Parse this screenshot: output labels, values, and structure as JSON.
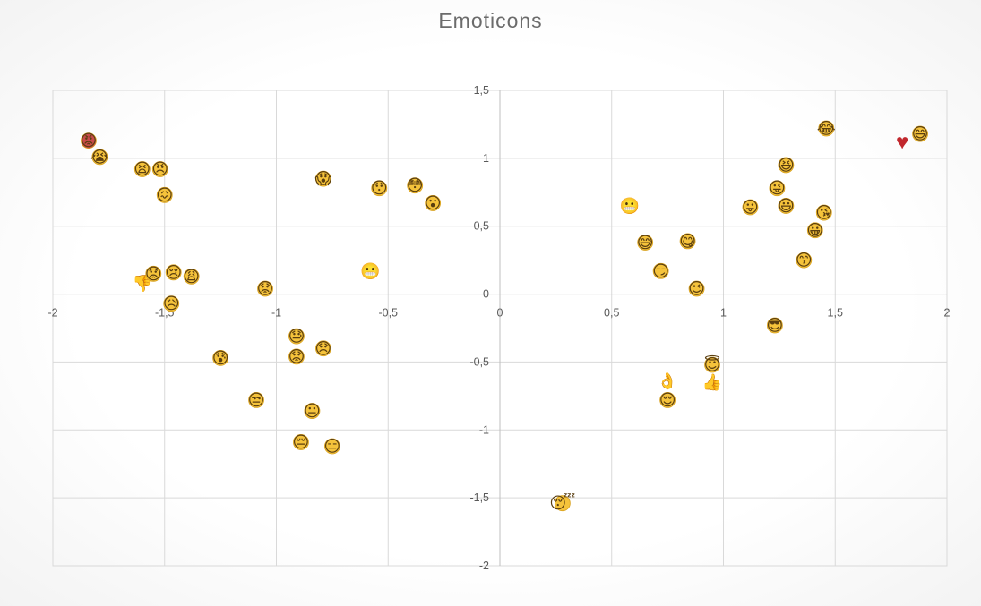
{
  "chart_data": {
    "type": "scatter",
    "title": "Emoticons",
    "xlabel": "",
    "ylabel": "",
    "xlim": [
      -2,
      2
    ],
    "ylim": [
      -2,
      1.5
    ],
    "grid": true,
    "legend": "none",
    "x_ticks": [
      -2,
      -1.5,
      -1,
      -0.5,
      0,
      0.5,
      1,
      1.5,
      2
    ],
    "x_tick_labels": [
      "-2",
      "-1,5",
      "-1",
      "-0,5",
      "0",
      "0,5",
      "1",
      "1,5",
      "2"
    ],
    "y_ticks": [
      -2,
      -1.5,
      -1,
      -0.5,
      0,
      0.5,
      1,
      1.5
    ],
    "y_tick_labels": [
      "-2",
      "-1,5",
      "-1",
      "-0,5",
      "0",
      "0,5",
      "1",
      "1,5"
    ],
    "colors": {
      "face": "#f5c33b",
      "face_stroke": "#d9a21e",
      "heart": "#c1272d",
      "angry": "#c84a4a",
      "hand": "#c08a66",
      "grid": "#d9d9d9",
      "axis": "#bfbfbf"
    },
    "points": [
      {
        "name": "pouting-face",
        "x": -1.84,
        "y": 1.13,
        "icon": "😡"
      },
      {
        "name": "loudly-crying-face",
        "x": -1.79,
        "y": 1.01,
        "icon": "😭"
      },
      {
        "name": "tired-face",
        "x": -1.6,
        "y": 0.92,
        "icon": "😫"
      },
      {
        "name": "angry-face",
        "x": -1.52,
        "y": 0.92,
        "icon": "😠"
      },
      {
        "name": "confounded-face",
        "x": -1.5,
        "y": 0.73,
        "icon": "😖"
      },
      {
        "name": "thumbs-down",
        "x": -1.6,
        "y": 0.08,
        "icon": "👎"
      },
      {
        "name": "worried-face",
        "x": -1.55,
        "y": 0.15,
        "icon": "😟"
      },
      {
        "name": "crying-face",
        "x": -1.46,
        "y": 0.16,
        "icon": "😢"
      },
      {
        "name": "weary-face",
        "x": -1.38,
        "y": 0.13,
        "icon": "😩"
      },
      {
        "name": "disappointed-relieved-face",
        "x": -1.47,
        "y": -0.07,
        "icon": "😥"
      },
      {
        "name": "face-with-open-mouth-cold-sweat",
        "x": -1.25,
        "y": -0.47,
        "icon": "😰"
      },
      {
        "name": "worried-face-2",
        "x": -1.05,
        "y": 0.04,
        "icon": "😟"
      },
      {
        "name": "unamused-face",
        "x": -1.09,
        "y": -0.78,
        "icon": "😒"
      },
      {
        "name": "face-with-cold-sweat",
        "x": -0.91,
        "y": -0.31,
        "icon": "😓"
      },
      {
        "name": "worried-face-3",
        "x": -0.91,
        "y": -0.46,
        "icon": "😟"
      },
      {
        "name": "disappointed-face",
        "x": -0.79,
        "y": -0.4,
        "icon": "😞"
      },
      {
        "name": "pensive-face",
        "x": -0.89,
        "y": -1.09,
        "icon": "😔"
      },
      {
        "name": "expressionless-face",
        "x": -0.75,
        "y": -1.12,
        "icon": "😑"
      },
      {
        "name": "neutral-face",
        "x": -0.84,
        "y": -0.86,
        "icon": "😐"
      },
      {
        "name": "face-screaming-in-fear",
        "x": -0.79,
        "y": 0.85,
        "icon": "😱"
      },
      {
        "name": "hushed-face",
        "x": -0.54,
        "y": 0.78,
        "icon": "😯"
      },
      {
        "name": "flushed-face",
        "x": -0.38,
        "y": 0.8,
        "icon": "😳"
      },
      {
        "name": "face-with-open-mouth",
        "x": -0.3,
        "y": 0.67,
        "icon": "😮"
      },
      {
        "name": "grimacing-face",
        "x": -0.58,
        "y": 0.17,
        "icon": "😬"
      },
      {
        "name": "sleeping-face",
        "x": 0.28,
        "y": -1.54,
        "icon": "😴"
      },
      {
        "name": "grimacing-face-2",
        "x": 0.58,
        "y": 0.65,
        "icon": "😬"
      },
      {
        "name": "smiling-face-with-sweat",
        "x": 0.65,
        "y": 0.38,
        "icon": "😅"
      },
      {
        "name": "smirking-face",
        "x": 0.72,
        "y": 0.17,
        "icon": "😏"
      },
      {
        "name": "face-savoring-food",
        "x": 0.84,
        "y": 0.39,
        "icon": "😋"
      },
      {
        "name": "winking-face",
        "x": 0.88,
        "y": 0.04,
        "icon": "😉"
      },
      {
        "name": "ok-hand",
        "x": 0.75,
        "y": -0.64,
        "icon": "👌"
      },
      {
        "name": "relieved-face",
        "x": 0.75,
        "y": -0.78,
        "icon": "😌"
      },
      {
        "name": "smiling-face-with-halo",
        "x": 0.95,
        "y": -0.52,
        "icon": "😇"
      },
      {
        "name": "thumbs-up",
        "x": 0.95,
        "y": -0.65,
        "icon": "👍"
      },
      {
        "name": "face-with-tongue",
        "x": 1.12,
        "y": 0.64,
        "icon": "😛"
      },
      {
        "name": "winking-face-with-tongue",
        "x": 1.24,
        "y": 0.78,
        "icon": "😜"
      },
      {
        "name": "grinning-squinting-face",
        "x": 1.28,
        "y": 0.95,
        "icon": "😆"
      },
      {
        "name": "grinning-face-with-big-eyes",
        "x": 1.28,
        "y": 0.65,
        "icon": "😃"
      },
      {
        "name": "smiling-face-with-sunglasses",
        "x": 1.23,
        "y": -0.23,
        "icon": "😎"
      },
      {
        "name": "kissing-face-with-smiling-eyes",
        "x": 1.36,
        "y": 0.25,
        "icon": "😙"
      },
      {
        "name": "grinning-face",
        "x": 1.41,
        "y": 0.47,
        "icon": "😀"
      },
      {
        "name": "face-blowing-a-kiss",
        "x": 1.45,
        "y": 0.6,
        "icon": "😘"
      },
      {
        "name": "face-with-tears-of-joy",
        "x": 1.46,
        "y": 1.22,
        "icon": "😂"
      },
      {
        "name": "red-heart",
        "x": 1.8,
        "y": 1.12,
        "icon": "♥"
      },
      {
        "name": "grinning-face-with-smiling-eyes",
        "x": 1.88,
        "y": 1.18,
        "icon": "😄"
      }
    ]
  }
}
